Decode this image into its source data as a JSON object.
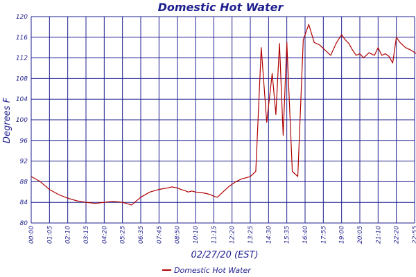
{
  "chart_data": {
    "type": "line",
    "title": "Domestic Hot Water",
    "xlabel": "02/27/20 (EST)",
    "ylabel": "Degrees F",
    "ylim": [
      80,
      120
    ],
    "yticks": [
      80,
      84,
      88,
      92,
      96,
      100,
      104,
      108,
      112,
      116,
      120
    ],
    "xticks": [
      "00:00",
      "01:05",
      "02:10",
      "03:15",
      "04:20",
      "05:25",
      "06:35",
      "07:45",
      "08:50",
      "10:10",
      "11:15",
      "12:20",
      "13:25",
      "14:30",
      "15:35",
      "16:40",
      "17:55",
      "19:00",
      "20:05",
      "21:10",
      "22:20",
      "22:55"
    ],
    "grid": true,
    "legend_position": "bottom",
    "colors": {
      "series": "#b00000",
      "grid": "#1f1f8f",
      "text": "#1f1f8f"
    },
    "series": [
      {
        "name": "Domestic Hot Water",
        "x": [
          0,
          0.5,
          1,
          1.5,
          2,
          2.5,
          3,
          3.5,
          4,
          4.5,
          5,
          5.5,
          6,
          6.5,
          7,
          7.3,
          7.5,
          7.7,
          8,
          8.2,
          8.4,
          8.6,
          8.8,
          9,
          9.3,
          9.6,
          9.8,
          10,
          10.2,
          10.5,
          10.8,
          11,
          11.2,
          11.5,
          11.8,
          12,
          12.3,
          12.6,
          12.9,
          13.2,
          13.4,
          13.6,
          13.8,
          14,
          14.3,
          14.6,
          14.9,
          15.2,
          15.5,
          15.8,
          16.1,
          16.4,
          16.7,
          17,
          17.2,
          17.4,
          17.6,
          17.8,
          18,
          18.2,
          18.5,
          18.8,
          19,
          19.2,
          19.4,
          19.6,
          19.8,
          20,
          20.2,
          20.5,
          20.8,
          21.1,
          21.4,
          21.7,
          22,
          22.3,
          22.6,
          22.9
        ],
        "values": [
          89,
          88,
          86.5,
          85.5,
          84.8,
          84.3,
          84,
          83.8,
          84,
          84.2,
          84,
          83.5,
          85,
          86,
          86.5,
          86.7,
          86.8,
          87,
          86.8,
          86.5,
          86.3,
          86,
          86.2,
          86,
          85.9,
          85.7,
          85.5,
          85.2,
          85,
          86,
          87,
          87.5,
          88,
          88.5,
          88.8,
          89,
          90,
          114,
          99.5,
          109,
          101,
          114.8,
          97,
          115,
          90,
          89,
          115.5,
          118.5,
          115,
          114.5,
          113.5,
          112.5,
          114.8,
          116.5,
          115.5,
          114.8,
          113.5,
          112.5,
          112.8,
          112,
          113,
          112.5,
          114,
          112.5,
          112.8,
          112.3,
          111,
          116,
          115,
          114,
          113.5,
          112.8,
          112.3,
          112.5,
          111.5,
          111.8,
          111,
          110.5
        ]
      }
    ]
  }
}
